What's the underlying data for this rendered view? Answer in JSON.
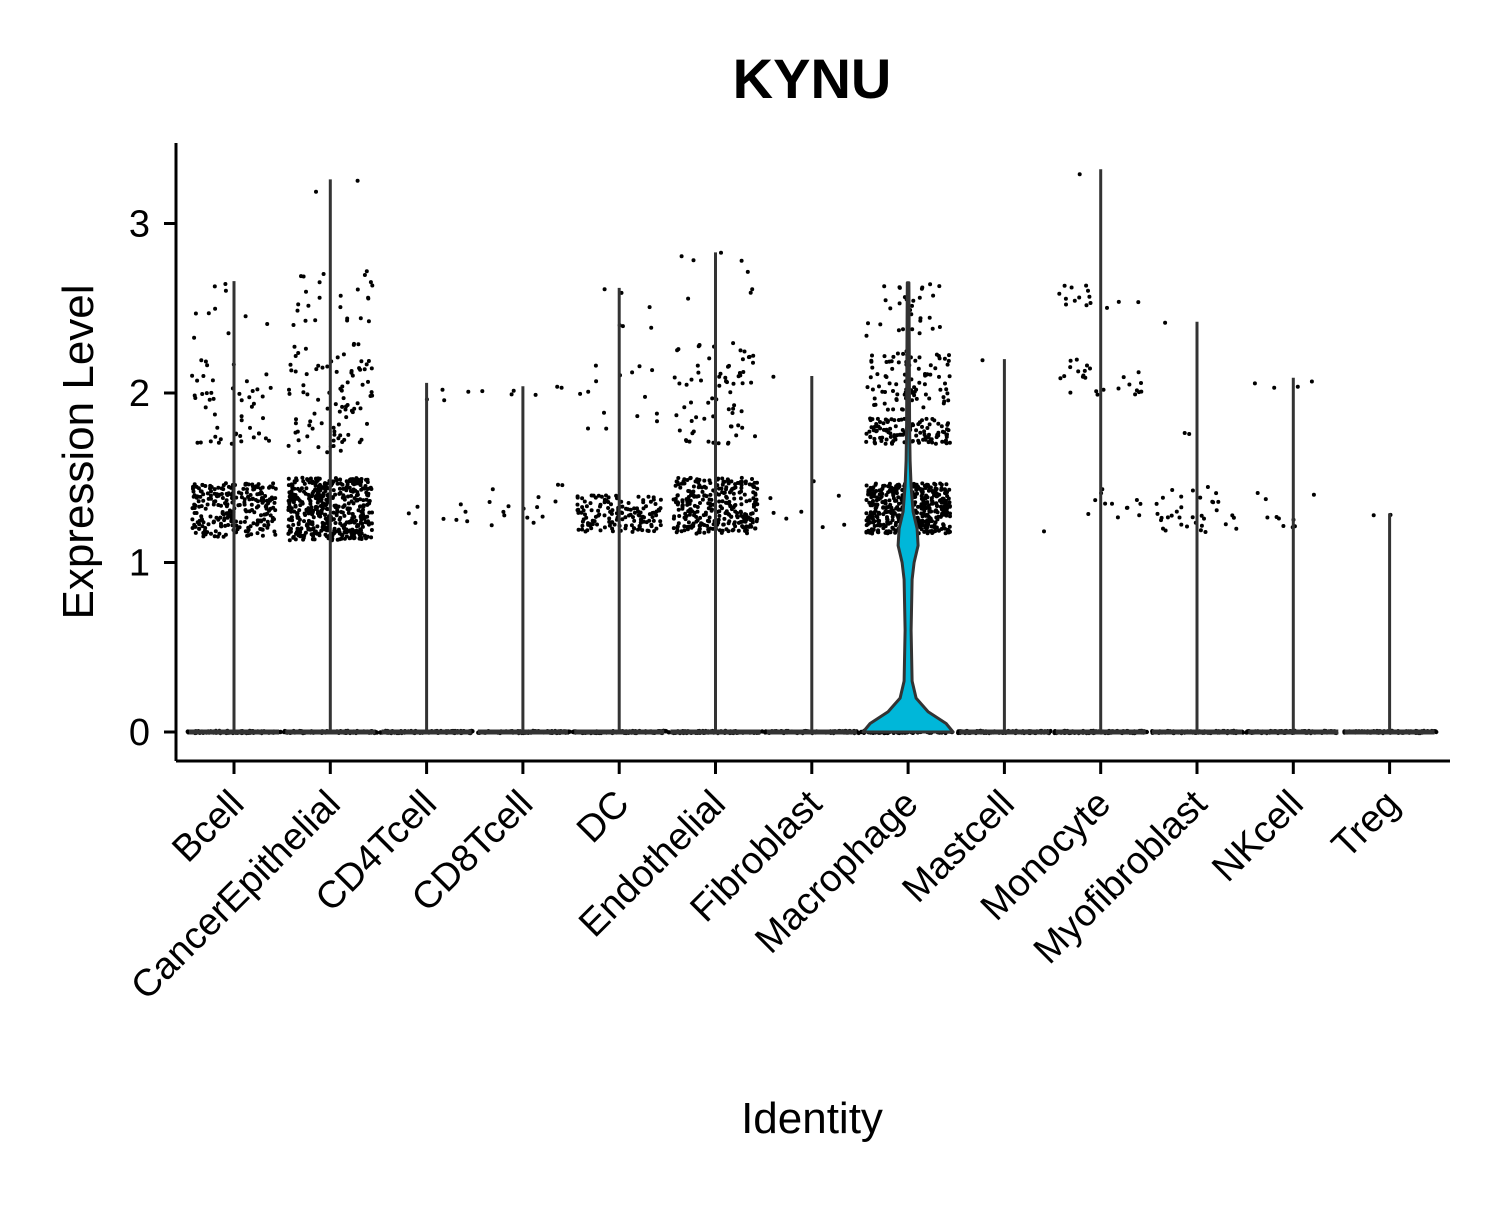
{
  "chart_data": {
    "type": "violin",
    "title": "KYNU",
    "xlabel": "Identity",
    "ylabel": "Expression Level",
    "ylim": [
      -0.17,
      3.5
    ],
    "yticks": [
      0,
      1,
      2,
      3
    ],
    "categories": [
      "Bcell",
      "CancerEpithelial",
      "CD4Tcell",
      "CD8Tcell",
      "DC",
      "Endothelial",
      "Fibroblast",
      "Macrophage",
      "Mastcell",
      "Monocyte",
      "Myofibroblast",
      "NKcell",
      "Treg"
    ],
    "max_values": [
      2.66,
      3.26,
      2.06,
      2.04,
      2.62,
      2.83,
      2.1,
      2.65,
      2.2,
      3.32,
      2.42,
      2.09,
      1.29
    ],
    "highlight": {
      "category": "Macrophage",
      "color": "#00b7d9"
    },
    "point_clusters": [
      {
        "category": "Bcell",
        "bands": [
          [
            1.15,
            1.47,
            260
          ],
          [
            1.7,
            2.25,
            50
          ],
          [
            2.3,
            2.66,
            10
          ]
        ]
      },
      {
        "category": "CancerEpithelial",
        "bands": [
          [
            1.13,
            1.5,
            480
          ],
          [
            1.65,
            2.3,
            90
          ],
          [
            2.4,
            2.75,
            25
          ],
          [
            3.1,
            3.26,
            2
          ]
        ]
      },
      {
        "category": "CD4Tcell",
        "bands": [
          [
            1.2,
            1.46,
            8
          ],
          [
            1.95,
            2.06,
            4
          ]
        ]
      },
      {
        "category": "CD8Tcell",
        "bands": [
          [
            1.2,
            1.47,
            15
          ],
          [
            1.96,
            2.04,
            6
          ]
        ]
      },
      {
        "category": "DC",
        "bands": [
          [
            1.18,
            1.4,
            150
          ],
          [
            1.75,
            2.2,
            15
          ],
          [
            2.35,
            2.62,
            6
          ]
        ]
      },
      {
        "category": "Endothelial",
        "bands": [
          [
            1.17,
            1.5,
            300
          ],
          [
            1.7,
            2.3,
            70
          ],
          [
            2.55,
            2.83,
            8
          ]
        ]
      },
      {
        "category": "Fibroblast",
        "bands": [
          [
            1.18,
            1.48,
            8
          ],
          [
            2.08,
            2.1,
            1
          ]
        ]
      },
      {
        "category": "Macrophage",
        "bands": [
          [
            1.17,
            1.47,
            450
          ],
          [
            1.7,
            1.85,
            120
          ],
          [
            1.9,
            2.25,
            90
          ],
          [
            2.3,
            2.65,
            30
          ]
        ]
      },
      {
        "category": "Mastcell",
        "bands": [
          [
            1.18,
            1.2,
            1
          ],
          [
            2.18,
            2.2,
            1
          ]
        ]
      },
      {
        "category": "Monocyte",
        "bands": [
          [
            1.25,
            1.45,
            12
          ],
          [
            1.98,
            2.2,
            25
          ],
          [
            2.5,
            2.65,
            15
          ],
          [
            3.28,
            3.32,
            1
          ]
        ]
      },
      {
        "category": "Myofibroblast",
        "bands": [
          [
            1.18,
            1.45,
            35
          ],
          [
            1.75,
            1.9,
            2
          ],
          [
            2.4,
            2.42,
            1
          ]
        ]
      },
      {
        "category": "NKcell",
        "bands": [
          [
            1.2,
            1.45,
            10
          ],
          [
            2.02,
            2.09,
            4
          ]
        ]
      },
      {
        "category": "Treg",
        "bands": [
          [
            1.27,
            1.29,
            2
          ]
        ]
      }
    ]
  }
}
